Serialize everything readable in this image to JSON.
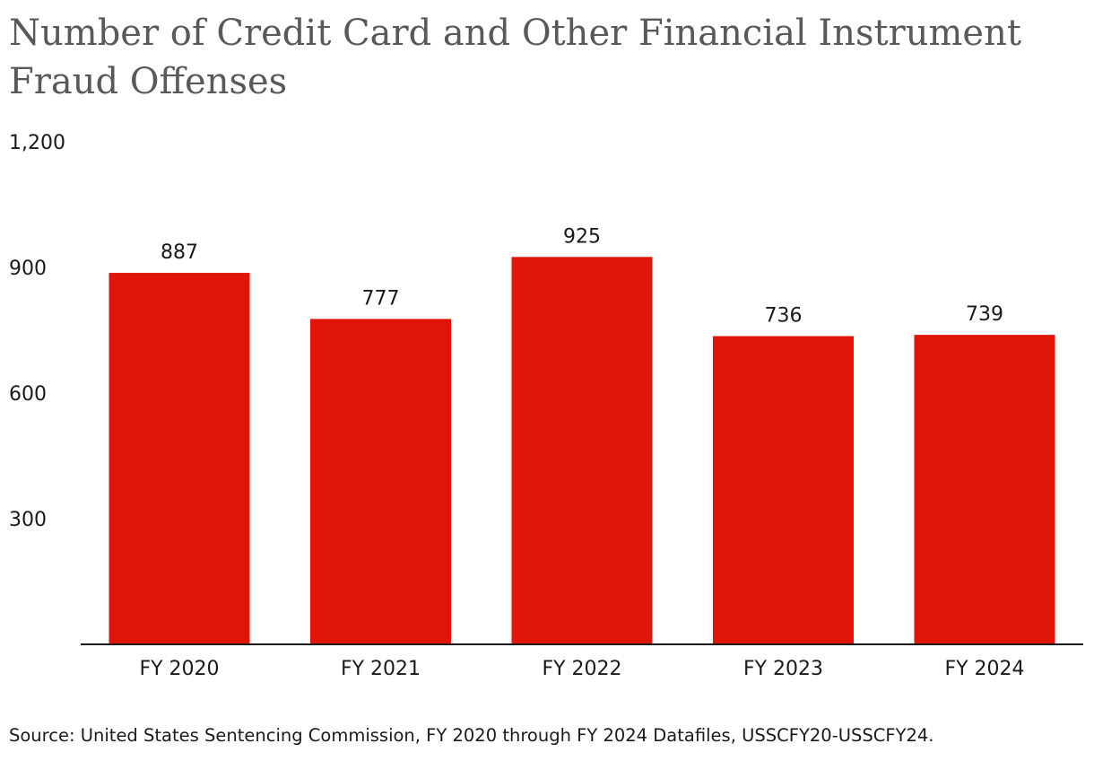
{
  "chart_data": {
    "type": "bar",
    "title": "Number of Credit Card and Other Financial Instrument Fraud Offenses",
    "categories": [
      "FY 2020",
      "FY 2021",
      "FY 2022",
      "FY 2023",
      "FY 2024"
    ],
    "values": [
      887,
      777,
      925,
      736,
      739
    ],
    "data_labels": [
      "887",
      "777",
      "925",
      "736",
      "739"
    ],
    "xlabel": "",
    "ylabel": "",
    "ylim": [
      0,
      1200
    ],
    "yticks": [
      300,
      600,
      900,
      1200
    ],
    "ytick_labels": [
      "300",
      "600",
      "900",
      "1,200"
    ],
    "grid": false,
    "legend": "none",
    "bar_color": "#e01507",
    "source": "Source: United States Sentencing Commission, FY 2020 through FY 2024 Datafiles, USSCFY20-USSCFY24."
  }
}
